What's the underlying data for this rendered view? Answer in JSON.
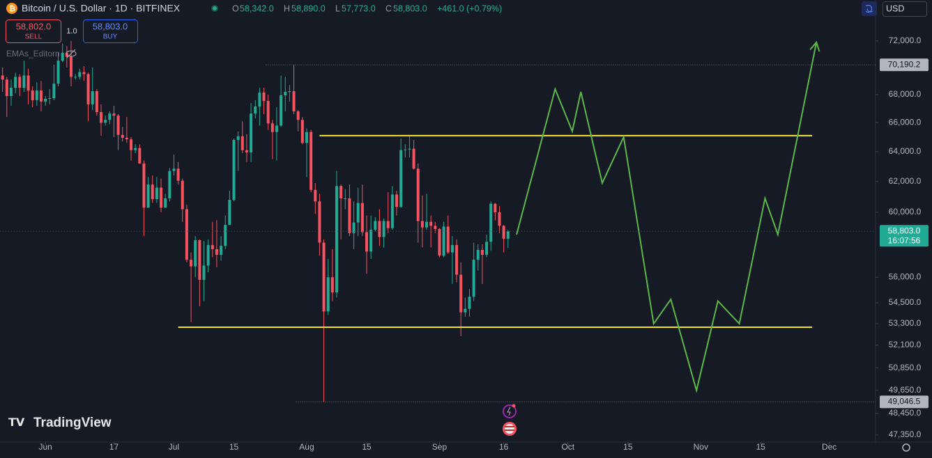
{
  "toolbar": {
    "symbol_title": "Bitcoin / U.S. Dollar · 1D · BITFINEX",
    "open_label": "O",
    "open": "58,342.0",
    "high_label": "H",
    "high": "58,890.0",
    "low_label": "L",
    "low": "57,773.0",
    "close_label": "C",
    "close": "58,803.0",
    "change": "+461.0 (+0.79%)",
    "sell_price": "58,802.0",
    "sell_label": "SELL",
    "quantity": "1.0",
    "buy_price": "58,803.0",
    "buy_label": "BUY",
    "indicator": "EMAs_Editorn",
    "currency": "USD",
    "logo": "TradingView"
  },
  "chart_data": {
    "type": "candlestick",
    "title": "Bitcoin / U.S. Dollar · 1D · BITFINEX",
    "up_color": "#22ab94",
    "down_color": "#f7525f",
    "x": [
      -10,
      -9,
      -8,
      -7,
      -6,
      -5,
      -4,
      -3,
      -2,
      -1,
      0,
      1,
      2,
      3,
      4,
      5,
      6,
      7,
      8,
      9,
      10,
      11,
      12,
      13,
      14,
      15,
      16,
      17,
      18,
      19,
      20,
      21,
      22,
      23,
      24,
      25,
      26,
      27,
      28,
      29,
      30,
      31,
      32,
      33,
      34,
      35,
      36,
      37,
      38,
      39,
      40,
      41,
      42,
      43,
      44,
      45,
      46,
      47,
      48,
      49,
      50,
      51,
      52,
      53,
      54,
      55,
      56,
      57,
      58,
      59,
      60,
      61,
      62,
      63,
      64,
      65,
      66,
      67,
      68,
      69,
      70,
      71,
      72,
      73,
      74,
      75,
      76,
      77,
      78,
      79,
      80,
      81,
      82,
      83,
      84,
      85,
      86,
      87,
      88,
      89,
      90,
      91,
      92,
      93,
      94,
      95,
      96,
      97,
      98,
      99,
      100,
      101,
      102,
      103,
      104,
      105,
      106,
      107,
      108
    ],
    "open": [
      69400,
      69100,
      67900,
      68500,
      69300,
      68500,
      69400,
      68300,
      67600,
      68300,
      67500,
      67700,
      67750,
      68800,
      70500,
      71100,
      70800,
      69300,
      69300,
      69650,
      69500,
      67300,
      68250,
      66750,
      66000,
      66200,
      66650,
      66500,
      65150,
      64950,
      64850,
      64100,
      64250,
      63200,
      60300,
      61800,
      60850,
      61600,
      60300,
      60900,
      62700,
      62850,
      62050,
      60200,
      57050,
      56650,
      58250,
      55850,
      56700,
      57950,
      57700,
      57350,
      57900,
      59200,
      60800,
      64800,
      65050,
      64100,
      63950,
      66650,
      67150,
      68150,
      67550,
      65950,
      65350,
      65800,
      67950,
      68200,
      68250,
      66800,
      66200,
      64600,
      65350,
      61450,
      60700,
      58100,
      54000,
      56000,
      55100,
      61700,
      60900,
      60900,
      58700,
      59350,
      60600,
      58750,
      57550,
      58900,
      59450,
      58450,
      59450,
      59000,
      61150,
      60350,
      64100,
      64150,
      64200,
      62850,
      59450,
      59050,
      59400,
      59150,
      58950,
      57300,
      59100,
      57500,
      57950,
      56150,
      53950,
      54150,
      54850,
      57050,
      57650,
      57350,
      58150,
      60550,
      60000,
      59150,
      58342
    ],
    "high": [
      70000,
      69300,
      69100,
      69600,
      69500,
      70500,
      69900,
      68600,
      68900,
      69000,
      67900,
      68400,
      70200,
      71100,
      71800,
      71600,
      72000,
      69500,
      69900,
      70100,
      69600,
      70000,
      68400,
      67300,
      66500,
      66800,
      67200,
      66600,
      65700,
      66400,
      65000,
      64500,
      64500,
      63400,
      62300,
      62400,
      62300,
      62200,
      61200,
      62900,
      63800,
      63300,
      62200,
      60500,
      57500,
      58500,
      58300,
      58200,
      58300,
      59400,
      59500,
      58500,
      59800,
      61400,
      64900,
      65400,
      66100,
      65200,
      67400,
      67600,
      68500,
      68500,
      68000,
      66200,
      67100,
      69400,
      69300,
      68700,
      70190.2,
      66900,
      66400,
      65600,
      65500,
      61900,
      61200,
      58300,
      57100,
      57700,
      62700,
      61800,
      61500,
      61800,
      60700,
      61600,
      61800,
      59800,
      59800,
      59700,
      60200,
      59600,
      61300,
      61700,
      61400,
      64900,
      64500,
      65100,
      64800,
      63200,
      61100,
      61200,
      59800,
      59400,
      59000,
      59400,
      59800,
      58500,
      58300,
      56900,
      54800,
      55300,
      58100,
      58000,
      58000,
      58600,
      60700,
      60600,
      60400,
      59200,
      58890
    ],
    "low": [
      68200,
      66400,
      67200,
      68100,
      67900,
      68200,
      67300,
      67100,
      67200,
      66800,
      67200,
      67300,
      67600,
      68600,
      70400,
      70000,
      68600,
      69100,
      69100,
      69000,
      66100,
      66900,
      66500,
      65100,
      65800,
      65900,
      65000,
      64100,
      64700,
      64600,
      63400,
      63900,
      63200,
      58500,
      60300,
      60600,
      60600,
      60000,
      60300,
      60700,
      62400,
      61800,
      59400,
      56900,
      53400,
      56000,
      54300,
      54600,
      56300,
      57200,
      56600,
      57000,
      57700,
      59300,
      60700,
      62700,
      63900,
      63300,
      63300,
      66300,
      65800,
      66600,
      65500,
      63500,
      63400,
      65700,
      66800,
      67500,
      66600,
      65400,
      64500,
      62300,
      61300,
      59900,
      57300,
      49046.5,
      53800,
      54600,
      54800,
      58300,
      60200,
      58500,
      57700,
      58500,
      58500,
      56200,
      57100,
      58800,
      57900,
      57800,
      58700,
      58900,
      59800,
      60300,
      63600,
      63600,
      62800,
      58100,
      57800,
      58900,
      57800,
      58700,
      57200,
      57200,
      57400,
      55600,
      55700,
      52600,
      53700,
      53700,
      54600,
      56400,
      55600,
      57200,
      57600,
      59500,
      58700,
      57500,
      57773
    ],
    "close": [
      69100,
      67900,
      68500,
      69300,
      68500,
      69400,
      68300,
      67600,
      68300,
      67500,
      67700,
      67750,
      68800,
      70500,
      71100,
      70800,
      69300,
      69300,
      69650,
      69500,
      67300,
      68250,
      66750,
      66000,
      66200,
      66650,
      66500,
      65150,
      64950,
      64850,
      64100,
      64250,
      63200,
      60300,
      61800,
      60850,
      61600,
      60300,
      60900,
      62700,
      62850,
      62050,
      60200,
      57050,
      56650,
      58250,
      55850,
      56700,
      57950,
      57700,
      57350,
      57900,
      59200,
      60800,
      64800,
      65050,
      64100,
      63950,
      66650,
      67150,
      68150,
      67550,
      65950,
      65350,
      65800,
      67950,
      68200,
      68250,
      66800,
      66200,
      64600,
      65350,
      61450,
      60700,
      58100,
      54000,
      56000,
      55100,
      61700,
      60900,
      60900,
      58700,
      59350,
      60600,
      58750,
      57550,
      58900,
      59450,
      58450,
      59450,
      59000,
      61150,
      60350,
      64100,
      64150,
      64200,
      62850,
      59450,
      59050,
      59400,
      59150,
      58950,
      57300,
      59100,
      57500,
      57950,
      56150,
      53950,
      54150,
      54850,
      57050,
      57650,
      57350,
      58150,
      60550,
      60000,
      59150,
      58342,
      58803
    ],
    "xlim": [
      -10.6,
      193.8
    ],
    "xticks": [
      {
        "value": 0,
        "label": "Jun"
      },
      {
        "value": 16,
        "label": "17"
      },
      {
        "value": 30,
        "label": "Jul"
      },
      {
        "value": 44,
        "label": "15"
      },
      {
        "value": 61,
        "label": "Aug"
      },
      {
        "value": 75,
        "label": "15"
      },
      {
        "value": 92,
        "label": "Sep"
      },
      {
        "value": 107,
        "label": "16"
      },
      {
        "value": 122,
        "label": "Oct"
      },
      {
        "value": 136,
        "label": "15"
      },
      {
        "value": 153,
        "label": "Nov"
      },
      {
        "value": 167,
        "label": "15"
      },
      {
        "value": 183,
        "label": "Dec"
      }
    ],
    "ylim": [
      47000,
      75200
    ],
    "log_scale": true,
    "yticks": [
      {
        "value": 72000,
        "label": "72,000.0"
      },
      {
        "value": 68000,
        "label": "68,000.0"
      },
      {
        "value": 66000,
        "label": "66,000.0"
      },
      {
        "value": 64000,
        "label": "64,000.0"
      },
      {
        "value": 62000,
        "label": "62,000.0"
      },
      {
        "value": 60000,
        "label": "60,000.0"
      },
      {
        "value": 56000,
        "label": "56,000.0"
      },
      {
        "value": 54500,
        "label": "54,500.0"
      },
      {
        "value": 53300,
        "label": "53,300.0"
      },
      {
        "value": 52100,
        "label": "52,100.0"
      },
      {
        "value": 50850,
        "label": "50,850.0"
      },
      {
        "value": 49650,
        "label": "49,650.0"
      },
      {
        "value": 48450,
        "label": "48,450.0"
      },
      {
        "value": 47350,
        "label": "47,350.0"
      }
    ],
    "price_markers": [
      {
        "value": 70190.2,
        "label": "70,190.2"
      },
      {
        "value": 49046.5,
        "label": "49,046.5"
      }
    ],
    "last_price": {
      "value": 58803.0,
      "label": "58,803.0",
      "countdown": "16:07:56"
    },
    "levels": [
      {
        "price": 65100,
        "x": [
          64,
          179
        ],
        "color": "#f5e83a"
      },
      {
        "price": 53100,
        "x": [
          31,
          179
        ],
        "color": "#f5e83a"
      }
    ],
    "projection": {
      "color": "#5cb848",
      "x": [
        110,
        119,
        123,
        125,
        130,
        135,
        142,
        146,
        152,
        157,
        162,
        168,
        171,
        180
      ],
      "y": [
        58600,
        68400,
        65400,
        68200,
        61900,
        65000,
        53300,
        54700,
        49650,
        54600,
        53300,
        60900,
        58600,
        71900
      ]
    }
  }
}
